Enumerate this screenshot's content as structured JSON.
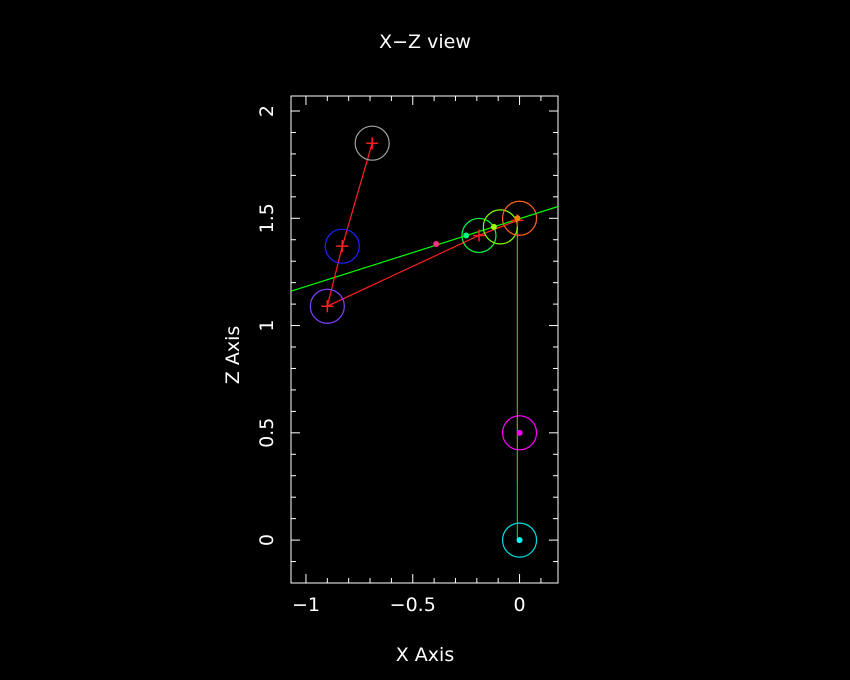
{
  "chart_data": {
    "type": "scatter",
    "title": "X−Z view",
    "xlabel": "X Axis",
    "ylabel": "Z Axis",
    "xlim": [
      -1.07,
      0.18
    ],
    "ylim": [
      -0.2,
      2.07
    ],
    "xticks": [
      {
        "value": -1,
        "label": "−1"
      },
      {
        "value": -0.5,
        "label": "−0.5"
      },
      {
        "value": 0,
        "label": "0"
      }
    ],
    "yticks": [
      {
        "value": 0,
        "label": "0"
      },
      {
        "value": 0.5,
        "label": "0.5"
      },
      {
        "value": 1,
        "label": "1"
      },
      {
        "value": 1.5,
        "label": "1.5"
      },
      {
        "value": 2,
        "label": "2"
      }
    ],
    "grid": false,
    "colors": {
      "background": "#000000",
      "axes": "#ffffff",
      "text": "#ffffff"
    },
    "segments": [
      {
        "name": "green-ray",
        "color": "#00ff00",
        "points": [
          [
            -1.07,
            1.16
          ],
          [
            0.18,
            1.555
          ]
        ]
      },
      {
        "name": "red-chain-upper",
        "color": "#ff2020",
        "points": [
          [
            -0.69,
            1.85
          ],
          [
            -0.83,
            1.37
          ],
          [
            -0.9,
            1.09
          ]
        ]
      },
      {
        "name": "red-chain-lower",
        "color": "#ff2020",
        "points": [
          [
            -0.9,
            1.09
          ],
          [
            -0.19,
            1.42
          ],
          [
            -0.01,
            1.49
          ]
        ]
      },
      {
        "name": "red-vertical",
        "color": "#ff2020",
        "points": [
          [
            -0.01,
            1.49
          ],
          [
            -0.01,
            0.49
          ],
          [
            -0.01,
            0.27
          ]
        ]
      },
      {
        "name": "green-vertical",
        "color": "#00cc00",
        "points": [
          [
            -0.01,
            1.49
          ],
          [
            -0.01,
            0.0
          ]
        ]
      }
    ],
    "circles": [
      {
        "x": -0.69,
        "z": 1.85,
        "color": "#a0a0a0"
      },
      {
        "x": -0.83,
        "z": 1.37,
        "color": "#2020ff"
      },
      {
        "x": -0.9,
        "z": 1.09,
        "color": "#8040ff"
      },
      {
        "x": -0.19,
        "z": 1.42,
        "color": "#00ff40"
      },
      {
        "x": -0.09,
        "z": 1.46,
        "color": "#80ff00"
      },
      {
        "x": 0.0,
        "z": 1.5,
        "color": "#ff6020"
      },
      {
        "x": 0.0,
        "z": 0.5,
        "color": "#ff00ff"
      },
      {
        "x": 0.0,
        "z": 0.0,
        "color": "#00e0e0"
      }
    ],
    "crosses": [
      {
        "x": -0.69,
        "z": 1.85
      },
      {
        "x": -0.83,
        "z": 1.37
      },
      {
        "x": -0.9,
        "z": 1.09
      },
      {
        "x": -0.19,
        "z": 1.42
      },
      {
        "x": -0.01,
        "z": 1.49
      }
    ],
    "dots": [
      {
        "x": -0.39,
        "z": 1.38,
        "color": "#ff3080"
      },
      {
        "x": -0.25,
        "z": 1.42,
        "color": "#00ff80"
      },
      {
        "x": -0.12,
        "z": 1.46,
        "color": "#a0ff00"
      },
      {
        "x": -0.01,
        "z": 1.5,
        "color": "#ff8000"
      },
      {
        "x": 0.0,
        "z": 0.5,
        "color": "#ff00ff"
      },
      {
        "x": 0.0,
        "z": 0.0,
        "color": "#00ffff"
      }
    ]
  }
}
